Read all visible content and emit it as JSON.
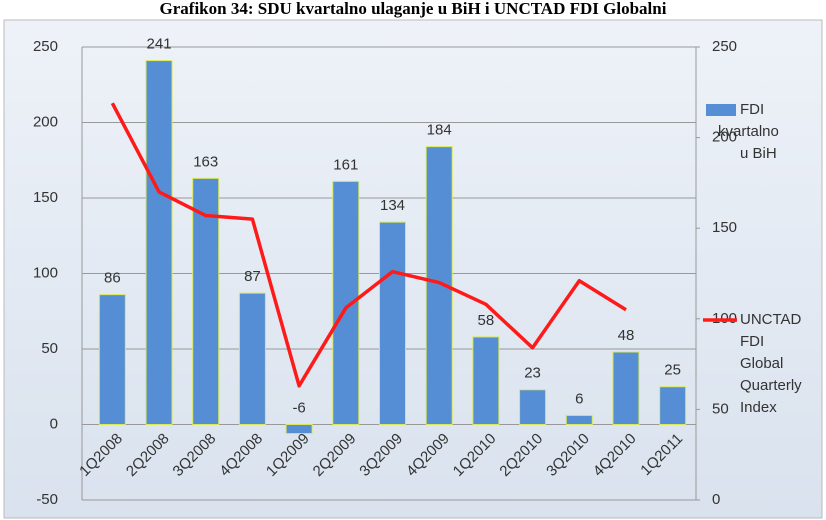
{
  "chart_data": {
    "type": "bar_line",
    "title": "Grafikon 34: SDU kvartalno ulaganje u BiH i UNCTAD FDI Globalni",
    "categories": [
      "1Q2008",
      "2Q2008",
      "3Q2008",
      "4Q2008",
      "1Q2009",
      "2Q2009",
      "3Q2009",
      "4Q2009",
      "1Q2010",
      "2Q2010",
      "3Q2010",
      "4Q2010",
      "1Q2011"
    ],
    "series": [
      {
        "name": "FDI kvartalno u BiH",
        "color": "#558ed5",
        "type": "bar",
        "values": [
          86,
          241,
          163,
          87,
          -6,
          161,
          134,
          184,
          58,
          23,
          6,
          48,
          25
        ]
      },
      {
        "name": "UNCTAD FDI Global Quarterly Index",
        "color": "#ff1a1a",
        "type": "line",
        "axis": "y2",
        "values": [
          219,
          170,
          157,
          155,
          63,
          106,
          126,
          120,
          108,
          84,
          121,
          105,
          null
        ]
      }
    ],
    "ylim": [
      -50,
      250
    ],
    "yticks": [
      -50,
      0,
      50,
      100,
      150,
      200,
      250
    ],
    "y2lim": [
      0,
      250
    ],
    "y2ticks": [
      0,
      50,
      100,
      150,
      200,
      250
    ],
    "grid": true,
    "legend": "right"
  }
}
